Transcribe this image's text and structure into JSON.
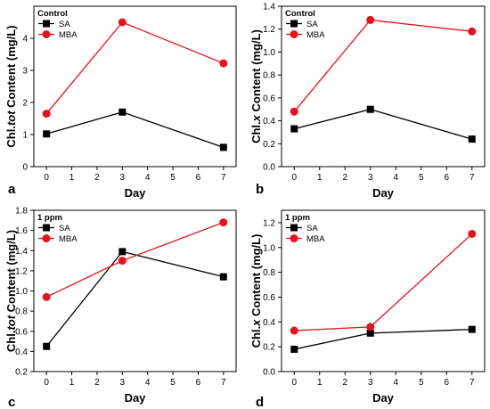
{
  "chart_data": [
    {
      "type": "line",
      "panel_label": "a",
      "condition": "Control",
      "xlabel": "Day",
      "ylabel_parts": [
        "Chl.",
        "tot",
        " Content (mg/L)"
      ],
      "xlim": [
        -0.5,
        7.5
      ],
      "ylim": [
        0,
        5
      ],
      "xticks": [
        0,
        1,
        2,
        3,
        4,
        5,
        6,
        7
      ],
      "yticks": [
        0,
        1,
        2,
        3,
        4
      ],
      "ytick_labels": [
        "0",
        "1",
        "2",
        "3",
        "4"
      ],
      "x": [
        0,
        3,
        7
      ],
      "series": [
        {
          "name": "SA",
          "color": "#000000",
          "marker": "square",
          "values": [
            1.02,
            1.7,
            0.6
          ]
        },
        {
          "name": "MBA",
          "color": "#e8121a",
          "marker": "circle",
          "values": [
            1.65,
            4.5,
            3.22
          ]
        }
      ],
      "legend": "top-left"
    },
    {
      "type": "line",
      "panel_label": "b",
      "condition": "Control",
      "xlabel": "Day",
      "ylabel_parts": [
        "Chl.",
        "x",
        " Content (mg/L)"
      ],
      "xlim": [
        -0.5,
        7.5
      ],
      "ylim": [
        0,
        1.4
      ],
      "xticks": [
        0,
        1,
        2,
        3,
        4,
        5,
        6,
        7
      ],
      "yticks": [
        0,
        0.2,
        0.4,
        0.6,
        0.8,
        1.0,
        1.2,
        1.4
      ],
      "ytick_labels": [
        "0.0",
        "0.2",
        "0.4",
        "0.6",
        "0.8",
        "1.0",
        "1.2",
        "1.4"
      ],
      "x": [
        0,
        3,
        7
      ],
      "series": [
        {
          "name": "SA",
          "color": "#000000",
          "marker": "square",
          "values": [
            0.33,
            0.5,
            0.24
          ]
        },
        {
          "name": "MBA",
          "color": "#e8121a",
          "marker": "circle",
          "values": [
            0.48,
            1.28,
            1.18
          ]
        }
      ],
      "legend": "top-left"
    },
    {
      "type": "line",
      "panel_label": "c",
      "condition": "1 ppm",
      "xlabel": "Day",
      "ylabel_parts": [
        "Chl.",
        "tot",
        " Content (mg/L)"
      ],
      "xlim": [
        -0.5,
        7.5
      ],
      "ylim": [
        0.2,
        1.8
      ],
      "xticks": [
        0,
        1,
        2,
        3,
        4,
        5,
        6,
        7
      ],
      "yticks": [
        0.2,
        0.4,
        0.6,
        0.8,
        1.0,
        1.2,
        1.4,
        1.6,
        1.8
      ],
      "ytick_labels": [
        "0.2",
        "0.4",
        "0.6",
        "0.8",
        "1.0",
        "1.2",
        "1.4",
        "1.6",
        "1.8"
      ],
      "x": [
        0,
        3,
        7
      ],
      "series": [
        {
          "name": "SA",
          "color": "#000000",
          "marker": "square",
          "values": [
            0.45,
            1.39,
            1.14
          ]
        },
        {
          "name": "MBA",
          "color": "#e8121a",
          "marker": "circle",
          "values": [
            0.94,
            1.3,
            1.68
          ]
        }
      ],
      "legend": "top-left"
    },
    {
      "type": "line",
      "panel_label": "d",
      "condition": "1 ppm",
      "xlabel": "Day",
      "ylabel_parts": [
        "Chl.",
        "x",
        " Content (mg/L)"
      ],
      "xlim": [
        -0.5,
        7.5
      ],
      "ylim": [
        0,
        1.3
      ],
      "xticks": [
        0,
        1,
        2,
        3,
        4,
        5,
        6,
        7
      ],
      "yticks": [
        0,
        0.2,
        0.4,
        0.6,
        0.8,
        1.0,
        1.2
      ],
      "ytick_labels": [
        "0.0",
        "0.2",
        "0.4",
        "0.6",
        "0.8",
        "1.0",
        "1.2"
      ],
      "x": [
        0,
        3,
        7
      ],
      "series": [
        {
          "name": "SA",
          "color": "#000000",
          "marker": "square",
          "values": [
            0.18,
            0.31,
            0.34
          ]
        },
        {
          "name": "MBA",
          "color": "#e8121a",
          "marker": "circle",
          "values": [
            0.33,
            0.36,
            1.11
          ]
        }
      ],
      "legend": "top-left"
    }
  ]
}
